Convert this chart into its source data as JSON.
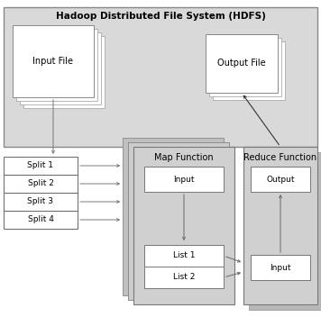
{
  "title": "Hadoop Distributed File System (HDFS)",
  "splits": [
    "Split 1",
    "Split 2",
    "Split 3",
    "Split 4"
  ],
  "map_label": "Map Function",
  "reduce_label": "Reduce Function",
  "input_file_label": "Input File",
  "output_file_label": "Output File",
  "gray_bg": "#d9d9d9",
  "med_gray": "#c8c8c8",
  "white": "#ffffff",
  "edge_dark": "#666666",
  "edge_med": "#888888",
  "arrow_color": "#555555"
}
